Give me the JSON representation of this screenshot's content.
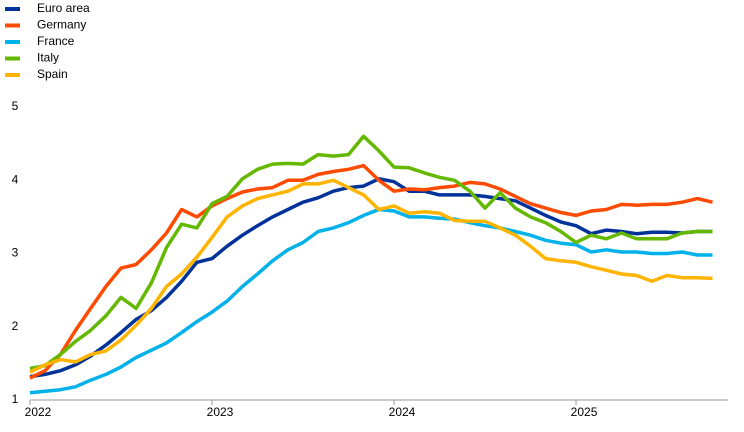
{
  "chart_data": {
    "type": "line",
    "x": [
      2022,
      2022.083,
      2022.167,
      2022.25,
      2022.333,
      2022.417,
      2022.5,
      2022.583,
      2022.667,
      2022.75,
      2022.833,
      2022.917,
      2023,
      2023.083,
      2023.167,
      2023.25,
      2023.333,
      2023.417,
      2023.5,
      2023.583,
      2023.667,
      2023.75,
      2023.833,
      2023.917,
      2024,
      2024.083,
      2024.167,
      2024.25,
      2024.333,
      2024.417,
      2024.5,
      2024.583,
      2024.667,
      2024.75,
      2024.833,
      2024.917,
      2025,
      2025.083,
      2025.167,
      2025.25,
      2025.333,
      2025.417,
      2025.5,
      2025.583,
      2025.667,
      2025.75
    ],
    "xlim": [
      2022,
      2025.835
    ],
    "xticks": [
      2022,
      2023,
      2024,
      2025
    ],
    "ylim": [
      1,
      5
    ],
    "yticks": [
      1,
      2,
      3,
      4,
      5
    ],
    "series": [
      {
        "name": "Euro area",
        "color": "#003299",
        "values": [
          1.32,
          1.35,
          1.4,
          1.48,
          1.6,
          1.75,
          1.92,
          2.1,
          2.22,
          2.4,
          2.62,
          2.88,
          2.93,
          3.1,
          3.25,
          3.38,
          3.5,
          3.6,
          3.7,
          3.76,
          3.85,
          3.9,
          3.92,
          4.02,
          3.98,
          3.85,
          3.85,
          3.8,
          3.8,
          3.8,
          3.78,
          3.75,
          3.72,
          3.62,
          3.52,
          3.43,
          3.38,
          3.27,
          3.32,
          3.3,
          3.27,
          3.29,
          3.29,
          3.28,
          3.3,
          3.3
        ]
      },
      {
        "name": "Germany",
        "color": "#ff4b00",
        "values": [
          1.3,
          1.4,
          1.62,
          1.95,
          2.25,
          2.55,
          2.8,
          2.85,
          3.05,
          3.28,
          3.6,
          3.5,
          3.65,
          3.75,
          3.84,
          3.88,
          3.9,
          4.0,
          4.0,
          4.08,
          4.12,
          4.15,
          4.2,
          4.0,
          3.85,
          3.88,
          3.87,
          3.9,
          3.92,
          3.97,
          3.95,
          3.88,
          3.78,
          3.68,
          3.62,
          3.56,
          3.52,
          3.58,
          3.6,
          3.67,
          3.66,
          3.67,
          3.67,
          3.7,
          3.75,
          3.7
        ]
      },
      {
        "name": "France",
        "color": "#00b1ea",
        "values": [
          1.1,
          1.12,
          1.14,
          1.18,
          1.27,
          1.35,
          1.45,
          1.58,
          1.68,
          1.78,
          1.92,
          2.07,
          2.2,
          2.35,
          2.55,
          2.72,
          2.9,
          3.05,
          3.15,
          3.3,
          3.35,
          3.42,
          3.52,
          3.6,
          3.58,
          3.5,
          3.5,
          3.48,
          3.47,
          3.42,
          3.38,
          3.35,
          3.3,
          3.25,
          3.18,
          3.14,
          3.12,
          3.02,
          3.05,
          3.02,
          3.02,
          3.0,
          3.0,
          3.02,
          2.98,
          2.98
        ]
      },
      {
        "name": "Italy",
        "color": "#65b800",
        "values": [
          1.43,
          1.47,
          1.62,
          1.8,
          1.95,
          2.15,
          2.4,
          2.25,
          2.6,
          3.08,
          3.4,
          3.35,
          3.68,
          3.78,
          4.02,
          4.15,
          4.22,
          4.23,
          4.22,
          4.35,
          4.33,
          4.35,
          4.6,
          4.4,
          4.18,
          4.17,
          4.1,
          4.04,
          4.0,
          3.85,
          3.62,
          3.83,
          3.62,
          3.5,
          3.42,
          3.3,
          3.15,
          3.25,
          3.2,
          3.28,
          3.2,
          3.2,
          3.2,
          3.28,
          3.3,
          3.3
        ]
      },
      {
        "name": "Spain",
        "color": "#ffb400",
        "values": [
          1.38,
          1.48,
          1.55,
          1.52,
          1.62,
          1.67,
          1.82,
          2.02,
          2.25,
          2.55,
          2.72,
          2.95,
          3.22,
          3.5,
          3.65,
          3.75,
          3.8,
          3.85,
          3.95,
          3.95,
          4.0,
          3.9,
          3.8,
          3.6,
          3.65,
          3.55,
          3.57,
          3.55,
          3.45,
          3.44,
          3.44,
          3.35,
          3.25,
          3.1,
          2.93,
          2.9,
          2.88,
          2.82,
          2.77,
          2.72,
          2.7,
          2.62,
          2.7,
          2.67,
          2.67,
          2.66
        ]
      }
    ]
  }
}
